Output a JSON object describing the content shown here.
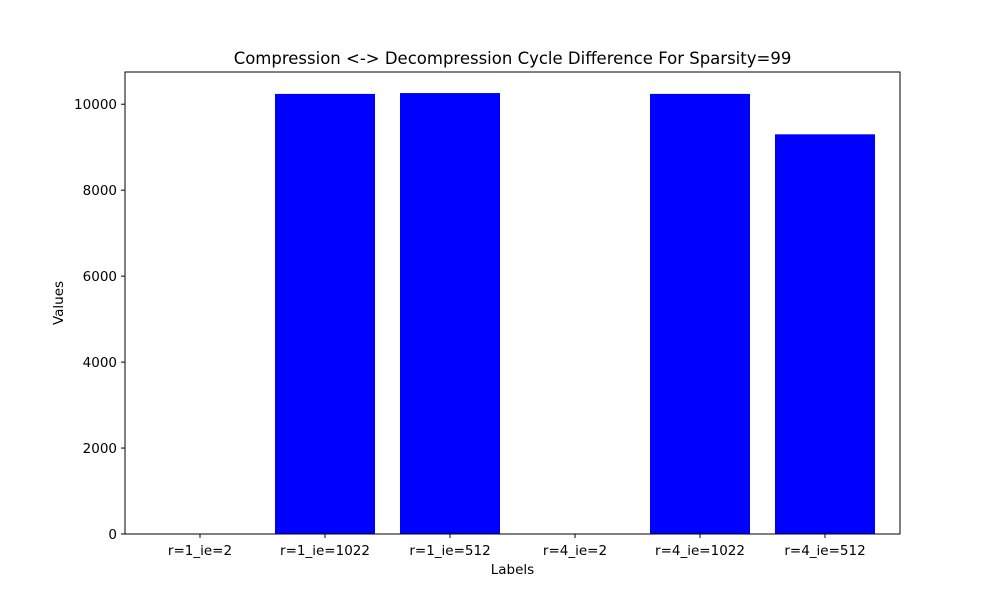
{
  "chart_data": {
    "type": "bar",
    "title": "Compression <-> Decompression Cycle Difference For Sparsity=99",
    "xlabel": "Labels",
    "ylabel": "Values",
    "categories": [
      "r=1_ie=2",
      "r=1_ie=1022",
      "r=1_ie=512",
      "r=4_ie=2",
      "r=4_ie=1022",
      "r=4_ie=512"
    ],
    "values": [
      0,
      10240,
      10260,
      0,
      10240,
      9300
    ],
    "ylim": [
      0,
      10750
    ],
    "yticks": [
      0,
      2000,
      4000,
      6000,
      8000,
      10000
    ],
    "bar_color": "#0000ff",
    "grid": false,
    "legend": "none"
  }
}
